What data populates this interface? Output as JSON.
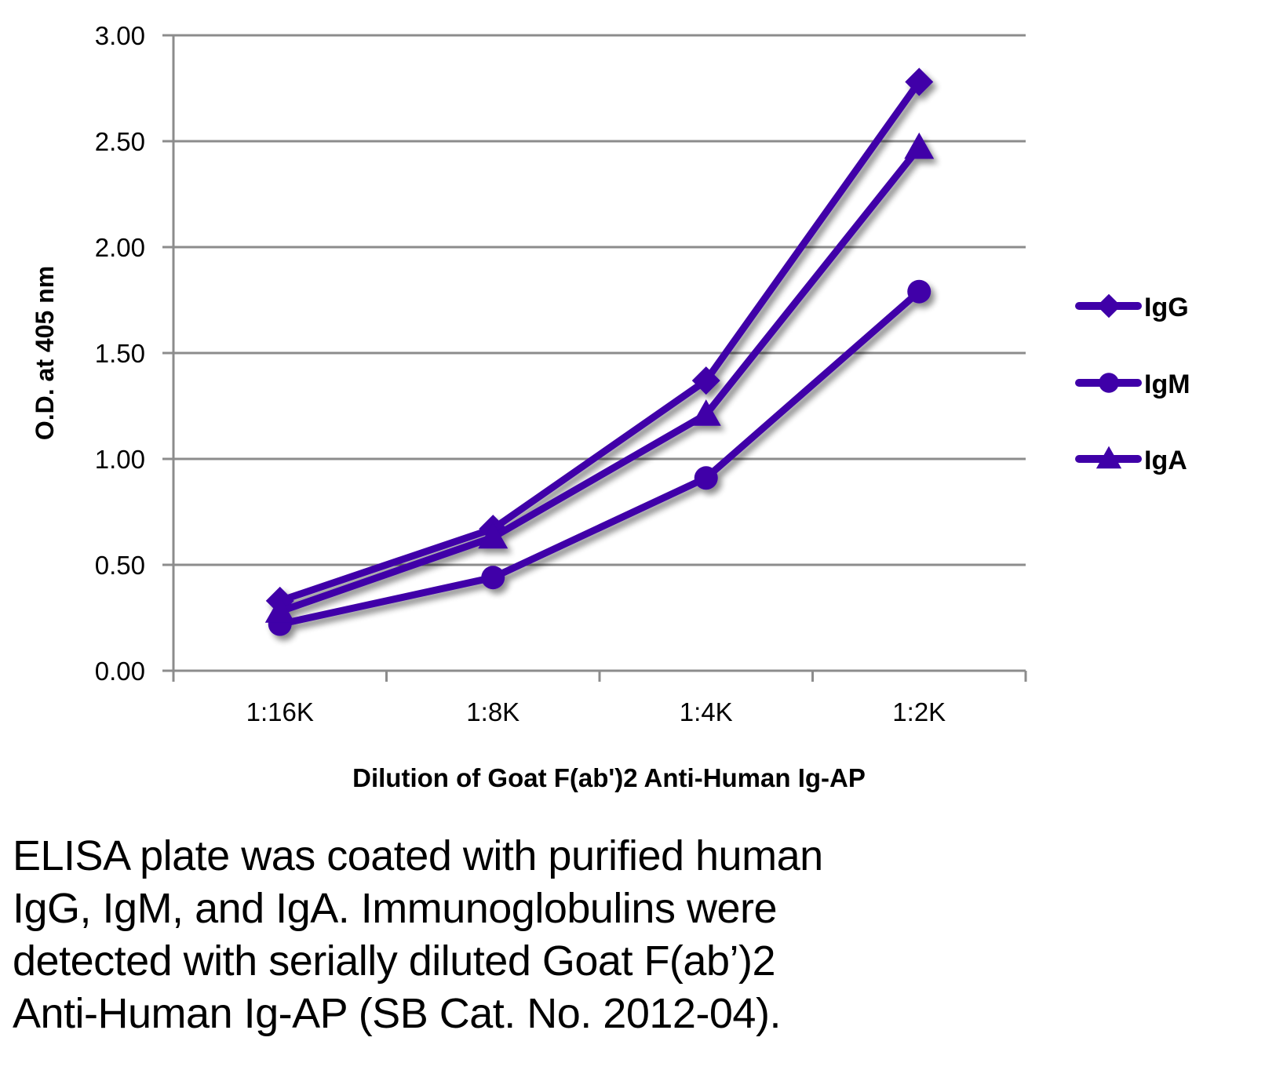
{
  "chart_data": {
    "type": "line",
    "title": "",
    "xlabel": "Dilution of Goat F(ab')2 Anti-Human Ig-AP",
    "ylabel": "O.D. at 405 nm",
    "categories": [
      "1:16K",
      "1:8K",
      "1:4K",
      "1:2K"
    ],
    "ylim": [
      0,
      3
    ],
    "yticks": [
      "0.00",
      "0.50",
      "1.00",
      "1.50",
      "2.00",
      "2.50",
      "3.00"
    ],
    "ytick_values": [
      0,
      0.5,
      1.0,
      1.5,
      2.0,
      2.5,
      3.0
    ],
    "grid": "horizontal",
    "legend_position": "right",
    "series": [
      {
        "name": "IgG",
        "marker": "diamond",
        "color": "#3F00A8",
        "values": [
          0.33,
          0.67,
          1.37,
          2.78
        ]
      },
      {
        "name": "IgM",
        "marker": "circle",
        "color": "#3F00A8",
        "values": [
          0.22,
          0.44,
          0.91,
          1.79
        ]
      },
      {
        "name": "IgA",
        "marker": "triangle",
        "color": "#3F00A8",
        "values": [
          0.28,
          0.63,
          1.21,
          2.47
        ]
      }
    ]
  },
  "caption": {
    "lines": [
      "ELISA plate was coated with purified human",
      "IgG, IgM, and IgA.  Immunoglobulins were",
      "detected with serially diluted Goat F(ab’)2",
      "Anti-Human Ig-AP (SB Cat. No. 2012-04)."
    ]
  },
  "colors": {
    "series": "#3F00A8",
    "grid": "#8c8c8c",
    "text": "#000000"
  }
}
